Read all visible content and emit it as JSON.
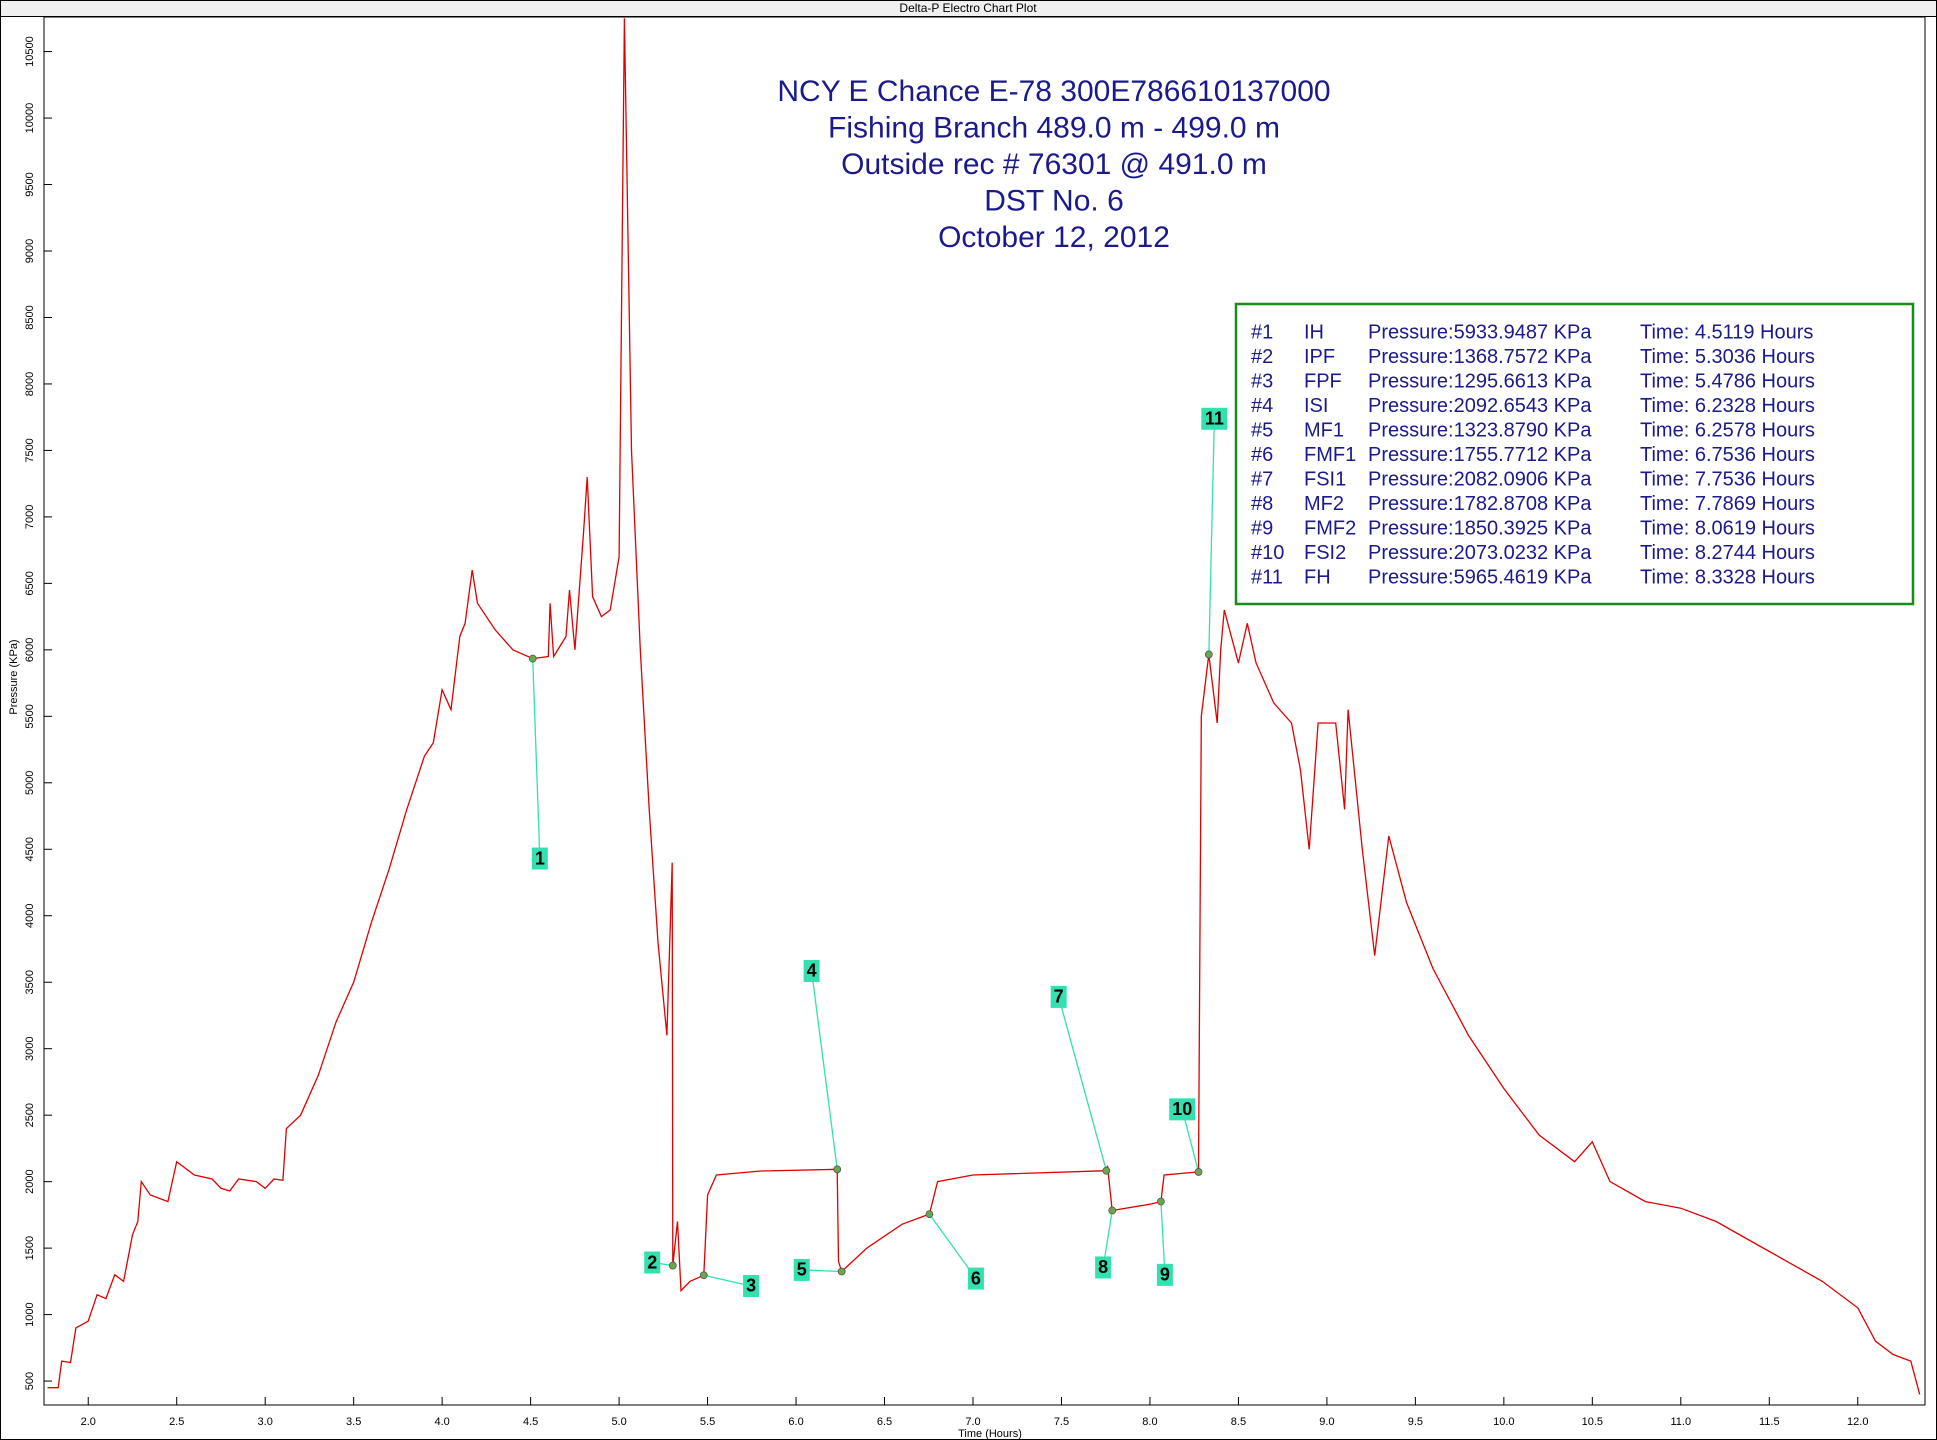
{
  "chart_data": {
    "type": "line",
    "window_title": "Delta-P Electro Chart Plot",
    "title_lines": [
      "NCY E Chance E-78  300E786610137000",
      "Fishing Branch  489.0 m - 499.0  m",
      "Outside rec # 76301 @ 491.0  m",
      "DST No. 6",
      "October 12, 2012"
    ],
    "x_label": "Time (Hours)",
    "y_label": "Pressure (KPa)",
    "xlim": [
      1.75,
      12.38
    ],
    "ylim": [
      320,
      10760
    ],
    "xticks": [
      {
        "value": 2,
        "label": "2.0"
      },
      2.5,
      {
        "value": 3,
        "label": "3.0"
      },
      3.5,
      {
        "value": 4,
        "label": "4.0"
      },
      4.5,
      {
        "value": 5,
        "label": "5.0"
      },
      5.5,
      {
        "value": 6,
        "label": "6.0"
      },
      6.5,
      {
        "value": 7,
        "label": "7.0"
      },
      7.5,
      {
        "value": 8,
        "label": "8.0"
      },
      8.5,
      {
        "value": 9,
        "label": "9.0"
      },
      9.5,
      {
        "value": 10,
        "label": "10.0"
      },
      10.5,
      {
        "value": 11,
        "label": "11.0"
      },
      11.5,
      {
        "value": 12,
        "label": "12.0"
      }
    ],
    "yticks": [
      500,
      1000,
      1500,
      2000,
      2500,
      3000,
      3500,
      4000,
      4500,
      5000,
      5500,
      6000,
      6500,
      7000,
      7500,
      8000,
      8500,
      9000,
      9500,
      10000,
      10500
    ],
    "grid": false,
    "color": "#e00000",
    "x": [
      1.77,
      1.83,
      1.85,
      1.9,
      1.93,
      2.0,
      2.05,
      2.1,
      2.15,
      2.2,
      2.25,
      2.28,
      2.3,
      2.35,
      2.45,
      2.5,
      2.6,
      2.7,
      2.75,
      2.8,
      2.85,
      2.95,
      3.0,
      3.05,
      3.1,
      3.12,
      3.2,
      3.3,
      3.4,
      3.5,
      3.6,
      3.7,
      3.8,
      3.9,
      3.95,
      4.0,
      4.05,
      4.1,
      4.13,
      4.17,
      4.2,
      4.3,
      4.4,
      4.5119,
      4.6,
      4.61,
      4.63,
      4.7,
      4.72,
      4.75,
      4.8,
      4.82,
      4.85,
      4.9,
      4.95,
      5.0,
      5.03,
      5.07,
      5.12,
      5.17,
      5.22,
      5.27,
      5.3,
      5.3036,
      5.33,
      5.35,
      5.4,
      5.4786,
      5.5,
      5.55,
      5.8,
      6.2328,
      6.24,
      6.2578,
      6.4,
      6.6,
      6.7536,
      6.8,
      7.0,
      7.7536,
      7.76,
      7.7869,
      8.0,
      8.0619,
      8.08,
      8.2744,
      8.29,
      8.3328,
      8.38,
      8.4,
      8.42,
      8.5,
      8.55,
      8.6,
      8.7,
      8.8,
      8.85,
      8.9,
      8.95,
      9.05,
      9.1,
      9.12,
      9.2,
      9.27,
      9.35,
      9.45,
      9.6,
      9.8,
      10.0,
      10.2,
      10.4,
      10.5,
      10.6,
      10.8,
      11.0,
      11.2,
      11.4,
      11.6,
      11.8,
      12.0,
      12.1,
      12.2,
      12.3,
      12.35
    ],
    "values": [
      450,
      450,
      650,
      640,
      900,
      950,
      1150,
      1120,
      1300,
      1250,
      1600,
      1700,
      2000,
      1900,
      1850,
      2150,
      2050,
      2020,
      1950,
      1930,
      2020,
      2000,
      1950,
      2020,
      2010,
      2400,
      2500,
      2800,
      3200,
      3500,
      3950,
      4350,
      4800,
      5200,
      5300,
      5700,
      5550,
      6100,
      6200,
      6600,
      6350,
      6150,
      6000,
      5934,
      5950,
      6350,
      5950,
      6100,
      6450,
      6000,
      6900,
      7300,
      6400,
      6250,
      6300,
      6700,
      10750,
      7500,
      6000,
      4800,
      3800,
      3100,
      4400,
      1369,
      1700,
      1180,
      1250,
      1296,
      1900,
      2050,
      2080,
      2093,
      1400,
      1324,
      1500,
      1680,
      1756,
      2000,
      2050,
      2082,
      2120,
      1783,
      1830,
      1850,
      2050,
      2073,
      5500,
      5965,
      5450,
      6000,
      6300,
      5900,
      6200,
      5900,
      5600,
      5450,
      5100,
      4500,
      5450,
      5450,
      4800,
      5550,
      4500,
      3700,
      4600,
      4100,
      3600,
      3100,
      2700,
      2350,
      2150,
      2300,
      2000,
      1850,
      1800,
      1700,
      1550,
      1400,
      1250,
      1050,
      800,
      700,
      650,
      400
    ],
    "marker_color": "#6aa84f",
    "leader_color": "#33e0b0",
    "events": [
      {
        "number": "#1",
        "code": "IH",
        "pressure": 5933.9487,
        "pressure_label": "Pressure:5933.9487 KPa",
        "time": 4.5119,
        "time_label": "Time: 4.5119 Hours",
        "marker_label": "1"
      },
      {
        "number": "#2",
        "code": "IPF",
        "pressure": 1368.7572,
        "pressure_label": "Pressure:1368.7572 KPa",
        "time": 5.3036,
        "time_label": "Time: 5.3036 Hours",
        "marker_label": "2"
      },
      {
        "number": "#3",
        "code": "FPF",
        "pressure": 1295.6613,
        "pressure_label": "Pressure:1295.6613 KPa",
        "time": 5.4786,
        "time_label": "Time: 5.4786 Hours",
        "marker_label": "3"
      },
      {
        "number": "#4",
        "code": "ISI",
        "pressure": 2092.6543,
        "pressure_label": "Pressure:2092.6543 KPa",
        "time": 6.2328,
        "time_label": "Time: 6.2328 Hours",
        "marker_label": "4"
      },
      {
        "number": "#5",
        "code": "MF1",
        "pressure": 1323.879,
        "pressure_label": "Pressure:1323.8790 KPa",
        "time": 6.2578,
        "time_label": "Time: 6.2578 Hours",
        "marker_label": "5"
      },
      {
        "number": "#6",
        "code": "FMF1",
        "pressure": 1755.7712,
        "pressure_label": "Pressure:1755.7712 KPa",
        "time": 6.7536,
        "time_label": "Time: 6.7536 Hours",
        "marker_label": "6"
      },
      {
        "number": "#7",
        "code": "FSI1",
        "pressure": 2082.0906,
        "pressure_label": "Pressure:2082.0906 KPa",
        "time": 7.7536,
        "time_label": "Time: 7.7536 Hours",
        "marker_label": "7"
      },
      {
        "number": "#8",
        "code": "MF2",
        "pressure": 1782.8708,
        "pressure_label": "Pressure:1782.8708 KPa",
        "time": 7.7869,
        "time_label": "Time: 7.7869 Hours",
        "marker_label": "8"
      },
      {
        "number": "#9",
        "code": "FMF2",
        "pressure": 1850.3925,
        "pressure_label": "Pressure:1850.3925 KPa",
        "time": 8.0619,
        "time_label": "Time: 8.0619 Hours",
        "marker_label": "9"
      },
      {
        "number": "#10",
        "code": "FSI2",
        "pressure": 2073.0232,
        "pressure_label": "Pressure:2073.0232 KPa",
        "time": 8.2744,
        "time_label": "Time: 8.2744 Hours",
        "marker_label": "10"
      },
      {
        "number": "#11",
        "code": "FH",
        "pressure": 5965.4619,
        "pressure_label": "Pressure:5965.4619 KPa",
        "time": 8.3328,
        "time_label": "Time: 8.3328 Hours",
        "marker_label": "11"
      }
    ]
  }
}
